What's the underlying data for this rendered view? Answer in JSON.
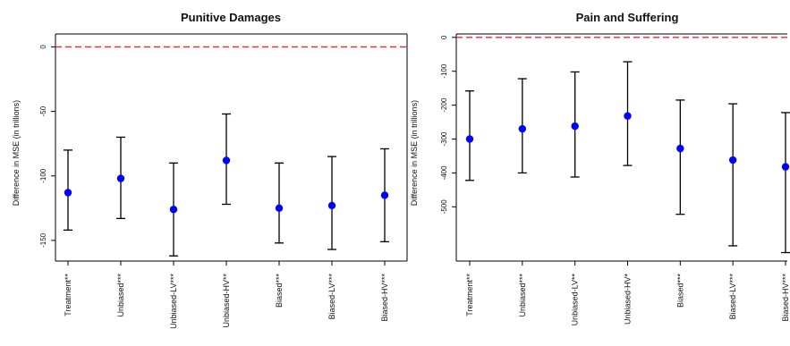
{
  "chart_data": [
    {
      "type": "scatter",
      "subtype": "errorbar",
      "title": "Punitive Damages",
      "xlabel": "",
      "ylabel": "Difference in MSE (in trillions)",
      "categories": [
        "Treatment**",
        "Unbiased***",
        "Unbiased-LV***",
        "Unbiased-HV**",
        "Biased***",
        "Biased-LV***",
        "Biased-HV***"
      ],
      "values": [
        -113,
        -102,
        -126,
        -88,
        -125,
        -123,
        -115
      ],
      "lower": [
        -142,
        -133,
        -162,
        -122,
        -152,
        -157,
        -151
      ],
      "upper": [
        -80,
        -70,
        -90,
        -52,
        -90,
        -85,
        -79
      ],
      "yticks": [
        0,
        -50,
        -100,
        -150
      ],
      "ytick_labels": [
        "0",
        "-50",
        "-100",
        "-150"
      ],
      "ylim": [
        -166,
        10
      ],
      "reference_line": 0,
      "reference_line_color": "#ff2222",
      "point_color": "#0000ff",
      "errorbar_color": "#000000",
      "grid": false
    },
    {
      "type": "scatter",
      "subtype": "errorbar",
      "title": "Pain and Suffering",
      "xlabel": "",
      "ylabel": "Difference in MSE (in trillions)",
      "categories": [
        "Treatment**",
        "Unbiased***",
        "Unbiased-LV**",
        "Unbiased-HV*",
        "Biased***",
        "Biased-LV***",
        "Biased-HV***"
      ],
      "values": [
        -300,
        -270,
        -262,
        -232,
        -328,
        -362,
        -382
      ],
      "lower": [
        -422,
        -400,
        -412,
        -378,
        -522,
        -615,
        -635
      ],
      "upper": [
        -158,
        -122,
        -102,
        -72,
        -185,
        -196,
        -222
      ],
      "yticks": [
        0,
        -100,
        -200,
        -300,
        -400,
        -500
      ],
      "ytick_labels": [
        "0",
        "-100",
        "-200",
        "-300",
        "-400",
        "-500"
      ],
      "ylim": [
        -660,
        10
      ],
      "reference_line": 0,
      "reference_line_color": "#ff2222",
      "point_color": "#0000ff",
      "errorbar_color": "#000000",
      "grid": false
    }
  ]
}
